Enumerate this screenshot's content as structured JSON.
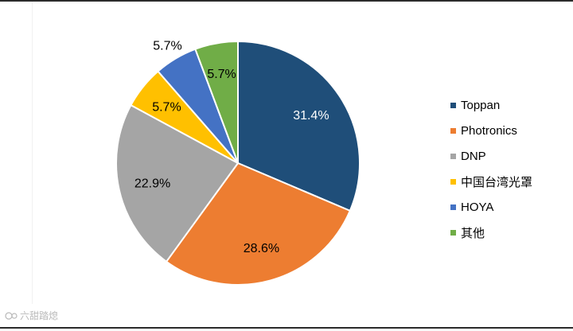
{
  "chart_data": {
    "type": "pie",
    "categories": [
      "Toppan",
      "Photronics",
      "DNP",
      "中国台湾光罩",
      "HOYA",
      "其他"
    ],
    "values": [
      31.4,
      28.6,
      22.9,
      5.7,
      5.7,
      5.7
    ],
    "data_labels": [
      "31.4%",
      "28.6%",
      "22.9%",
      "5.7%",
      "5.7%",
      "5.7%"
    ],
    "colors": [
      "#1f4e79",
      "#ed7d31",
      "#a5a5a5",
      "#ffc000",
      "#4472c4",
      "#70ad47"
    ],
    "start": "12 o'clock",
    "direction": "clockwise",
    "legend_position": "right"
  },
  "watermark": {
    "text": "六甜踏熄",
    "icon": "watermark-logo-icon"
  }
}
